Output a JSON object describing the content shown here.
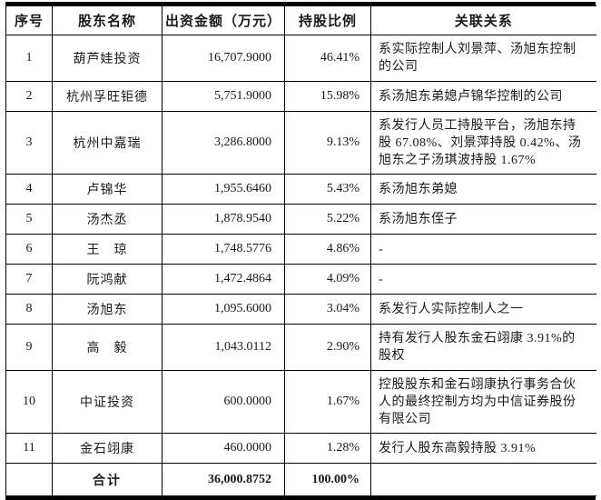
{
  "colors": {
    "text": "#1a1a1a",
    "border": "#000000",
    "background": "#ffffff"
  },
  "table": {
    "columns": [
      "序号",
      "股东名称",
      "出资金额（万元）",
      "持股比例",
      "关联关系"
    ],
    "rows": [
      {
        "no": "1",
        "name": "葫芦娃投资",
        "amount": "16,707.9000",
        "ratio": "46.41%",
        "relation": "系实际控制人刘景萍、汤旭东控制的公司"
      },
      {
        "no": "2",
        "name": "杭州孚旺钜德",
        "amount": "5,751.9000",
        "ratio": "15.98%",
        "relation": "系汤旭东弟媳卢锦华控制的公司"
      },
      {
        "no": "3",
        "name": "杭州中嘉瑞",
        "amount": "3,286.8000",
        "ratio": "9.13%",
        "relation": "系发行人员工持股平台，汤旭东持股 67.08%、刘景萍持股 0.42%、汤旭东之子汤琪波持股 1.67%"
      },
      {
        "no": "4",
        "name": "卢锦华",
        "amount": "1,955.6460",
        "ratio": "5.43%",
        "relation": "系汤旭东弟媳"
      },
      {
        "no": "5",
        "name": "汤杰丞",
        "amount": "1,878.9540",
        "ratio": "5.22%",
        "relation": "系汤旭东侄子"
      },
      {
        "no": "6",
        "name": "王　琼",
        "amount": "1,748.5776",
        "ratio": "4.86%",
        "relation": "-"
      },
      {
        "no": "7",
        "name": "阮鸿献",
        "amount": "1,472.4864",
        "ratio": "4.09%",
        "relation": "-"
      },
      {
        "no": "8",
        "name": "汤旭东",
        "amount": "1,095.6000",
        "ratio": "3.04%",
        "relation": "系发行人实际控制人之一"
      },
      {
        "no": "9",
        "name": "高　毅",
        "amount": "1,043.0112",
        "ratio": "2.90%",
        "relation": "持有发行人股东金石翊康 3.91%的股权"
      },
      {
        "no": "10",
        "name": "中证投资",
        "amount": "600.0000",
        "ratio": "1.67%",
        "relation": "控股股东和金石翊康执行事务合伙人的最终控制方均为中信证券股份有限公司"
      },
      {
        "no": "11",
        "name": "金石翊康",
        "amount": "460.0000",
        "ratio": "1.28%",
        "relation": "发行人股东高毅持股 3.91%"
      }
    ],
    "total_row": {
      "no": "",
      "label": "合计",
      "amount": "36,000.8752",
      "ratio": "100.00%",
      "relation": ""
    }
  }
}
